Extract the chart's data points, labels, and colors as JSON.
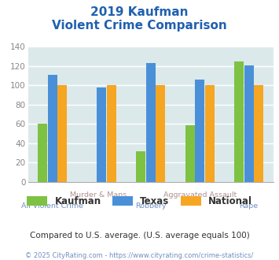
{
  "title_line1": "2019 Kaufman",
  "title_line2": "Violent Crime Comparison",
  "categories": [
    "All Violent Crime",
    "Murder & Mans...",
    "Robbery",
    "Aggravated Assault",
    "Rape"
  ],
  "series": {
    "Kaufman": [
      60,
      null,
      32,
      59,
      125
    ],
    "Texas": [
      111,
      98,
      123,
      106,
      121
    ],
    "National": [
      100,
      100,
      100,
      100,
      100
    ]
  },
  "colors": {
    "Kaufman": "#7dc242",
    "Texas": "#4a90d9",
    "National": "#f5a623"
  },
  "ylim": [
    0,
    140
  ],
  "yticks": [
    0,
    20,
    40,
    60,
    80,
    100,
    120,
    140
  ],
  "plot_bg_color": "#dce9ea",
  "title_color": "#2060b0",
  "tick_color_upper": "#b09090",
  "tick_color_lower": "#7090c0",
  "footnote1": "Compared to U.S. average. (U.S. average equals 100)",
  "footnote2": "© 2025 CityRating.com - https://www.cityrating.com/crime-statistics/",
  "footnote1_color": "#333333",
  "footnote2_color": "#7090c0",
  "legend_text_color": "#333333"
}
